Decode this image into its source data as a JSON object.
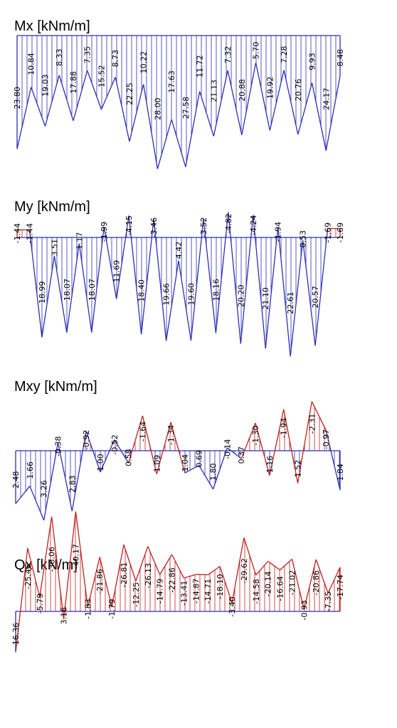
{
  "chart_data": [
    {
      "type": "line",
      "title": "Mx [kNm/m]",
      "colors": {
        "neg": "#2b2fb5",
        "pos": "#c0201e"
      },
      "labels": [
        "23.80",
        "10.84",
        "19.03",
        "8.33",
        "17.88",
        "7.35",
        "15.52",
        "8.73",
        "22.25",
        "10.22",
        "28.00",
        "17.63",
        "27.58",
        "11.72",
        "21.13",
        "7.32",
        "20.88",
        "5.70",
        "19.92",
        "7.28",
        "20.76",
        "9.93",
        "24.17",
        "8.48"
      ],
      "values": [
        23.8,
        10.84,
        19.03,
        8.33,
        17.88,
        7.35,
        15.52,
        8.73,
        22.25,
        10.22,
        28.0,
        17.63,
        27.58,
        11.72,
        21.13,
        7.32,
        20.88,
        5.7,
        19.92,
        7.28,
        20.76,
        9.93,
        24.17,
        8.48
      ]
    },
    {
      "type": "line",
      "title": "My [kNm/m]",
      "colors": {
        "neg": "#2b2fb5",
        "pos": "#c0201e"
      },
      "labels": [
        "-1.44",
        "-1.44",
        "18.99",
        "3.51",
        "18.07",
        "1.17",
        "18.07",
        "-1.99",
        "11.69",
        "-4.15",
        "18.40",
        "-3.46",
        "19.66",
        "4.42",
        "19.60",
        "-3.52",
        "18.16",
        "-4.82",
        "20.20",
        "-4.24",
        "21.10",
        "-1.94",
        "22.61",
        "0.53",
        "20.57",
        "-1.69",
        "-1.69"
      ],
      "values": [
        -1.44,
        -1.44,
        18.99,
        3.51,
        18.07,
        1.17,
        18.07,
        -1.99,
        11.69,
        -4.15,
        18.4,
        -3.46,
        19.66,
        4.42,
        19.6,
        -3.52,
        18.16,
        -4.82,
        20.2,
        -4.24,
        21.1,
        -1.94,
        22.61,
        0.53,
        20.57,
        -1.69,
        -1.69
      ]
    },
    {
      "type": "line",
      "title": "Mxy [kNm/m]",
      "colors": {
        "neg": "#2b2fb5",
        "pos": "#c0201e"
      },
      "labels": [
        "2.48",
        "1.66",
        "3.26",
        "-0.38",
        "2.83",
        "-0.92",
        "1.00",
        "-0.52",
        "0.58",
        "-1.64",
        "1.09",
        "-1.34",
        "1.04",
        "0.69",
        "1.80",
        "-0.14",
        "0.37",
        "-1.30",
        "1.16",
        "-1.94",
        "1.52",
        "-2.31",
        "-0.97",
        "1.84"
      ],
      "values": [
        2.48,
        1.66,
        3.26,
        -0.38,
        2.83,
        -0.92,
        1.0,
        -0.52,
        0.58,
        -1.64,
        1.09,
        -1.34,
        1.04,
        0.69,
        1.8,
        -0.14,
        0.37,
        -1.3,
        1.16,
        -1.94,
        1.52,
        -2.31,
        -0.97,
        1.84
      ]
    },
    {
      "type": "line",
      "title": "Qx [kN/m]",
      "colors": {
        "neg": "#2b2fb5",
        "pos": "#c0201e"
      },
      "labels": [
        "16.36",
        "-25.46",
        "-5.79",
        "-38.06",
        "3.16",
        "-40.17",
        "-1.83",
        "-21.86",
        "-1.79",
        "-26.81",
        "-12.25",
        "-26.13",
        "-14.79",
        "-22.86",
        "-13.41",
        "-14.87",
        "-14.71",
        "-18.10",
        "-3.40",
        "-29.62",
        "-14.58",
        "-20.14",
        "-16.64",
        "-21.02",
        "-0.93",
        "-20.86",
        "-7.35",
        "-17.74"
      ],
      "values": [
        16.36,
        -25.46,
        -5.79,
        -38.06,
        3.16,
        -40.17,
        -1.83,
        -21.86,
        -1.79,
        -26.81,
        -12.25,
        -26.13,
        -14.79,
        -22.86,
        -13.41,
        -14.87,
        -14.71,
        -18.1,
        -3.4,
        -29.62,
        -14.58,
        -20.14,
        -16.64,
        -21.02,
        -0.93,
        -20.86,
        -7.35,
        -17.74
      ]
    }
  ]
}
